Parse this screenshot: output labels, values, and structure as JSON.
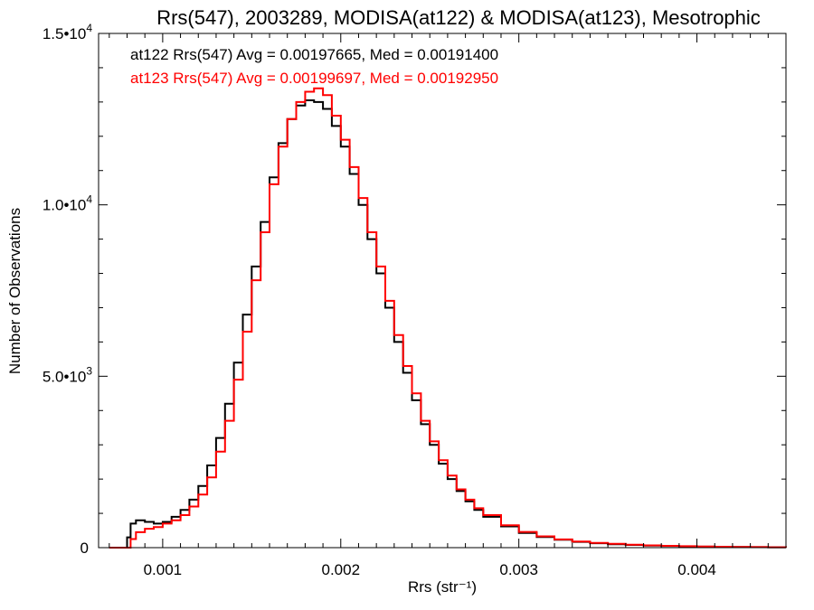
{
  "chart_data": {
    "type": "line",
    "title": "Rrs(547), 2003289, MODISA(at122) & MODISA(at123), Mesotrophic",
    "xlabel": "Rrs (str⁻¹)",
    "ylabel": "Number of Observations",
    "xlim": [
      0.00064,
      0.0045
    ],
    "ylim": [
      0,
      15000
    ],
    "xticks": [
      {
        "value": 0.001,
        "label": "0.001"
      },
      {
        "value": 0.002,
        "label": "0.002"
      },
      {
        "value": 0.003,
        "label": "0.003"
      },
      {
        "value": 0.004,
        "label": "0.004"
      }
    ],
    "yticks": [
      {
        "value": 0,
        "label": "0",
        "exp": ""
      },
      {
        "value": 5000,
        "label": "5.0•10",
        "exp": "3"
      },
      {
        "value": 10000,
        "label": "1.0•10",
        "exp": "4"
      },
      {
        "value": 15000,
        "label": "1.5•10",
        "exp": "4"
      }
    ],
    "grid": false,
    "legend_position": "top-left",
    "series": [
      {
        "label": "at122 Rrs(547) Avg = 0.00197665, Med = 0.00191400",
        "color": "#000000",
        "x": [
          0.0007,
          0.00078,
          0.0008,
          0.00082,
          0.00085,
          0.0009,
          0.00095,
          0.001,
          0.00105,
          0.0011,
          0.00115,
          0.0012,
          0.00125,
          0.0013,
          0.00135,
          0.0014,
          0.00145,
          0.0015,
          0.00155,
          0.0016,
          0.00165,
          0.0017,
          0.00175,
          0.0018,
          0.00185,
          0.0019,
          0.00195,
          0.002,
          0.00205,
          0.0021,
          0.00215,
          0.0022,
          0.00225,
          0.0023,
          0.00235,
          0.0024,
          0.00245,
          0.0025,
          0.00255,
          0.0026,
          0.00265,
          0.0027,
          0.00275,
          0.0028,
          0.0029,
          0.003,
          0.0031,
          0.0032,
          0.0033,
          0.0034,
          0.0035,
          0.0036,
          0.0037,
          0.0038,
          0.0039,
          0.004,
          0.0041,
          0.0042,
          0.0043,
          0.0044,
          0.0045
        ],
        "y": [
          0,
          0,
          300,
          700,
          800,
          750,
          700,
          750,
          900,
          1100,
          1400,
          1800,
          2400,
          3200,
          4200,
          5400,
          6800,
          8200,
          9500,
          10800,
          11800,
          12500,
          12900,
          13050,
          13000,
          12800,
          12300,
          11700,
          10900,
          10000,
          9000,
          8000,
          7000,
          6000,
          5100,
          4300,
          3600,
          3000,
          2450,
          2000,
          1650,
          1350,
          1100,
          900,
          620,
          430,
          310,
          230,
          170,
          130,
          100,
          80,
          60,
          50,
          40,
          30,
          25,
          20,
          15,
          10,
          5
        ]
      },
      {
        "label": "at123 Rrs(547) Avg = 0.00199697, Med = 0.00192950",
        "color": "#ff0000",
        "x": [
          0.0007,
          0.0008,
          0.00082,
          0.00085,
          0.0009,
          0.00095,
          0.001,
          0.00105,
          0.0011,
          0.00115,
          0.0012,
          0.00125,
          0.0013,
          0.00135,
          0.0014,
          0.00145,
          0.0015,
          0.00155,
          0.0016,
          0.00165,
          0.0017,
          0.00175,
          0.0018,
          0.00185,
          0.0019,
          0.00195,
          0.002,
          0.00205,
          0.0021,
          0.00215,
          0.0022,
          0.00225,
          0.0023,
          0.00235,
          0.0024,
          0.00245,
          0.0025,
          0.00255,
          0.0026,
          0.00265,
          0.0027,
          0.00275,
          0.0028,
          0.0029,
          0.003,
          0.0031,
          0.0032,
          0.0033,
          0.0034,
          0.0035,
          0.0036,
          0.0037,
          0.0038,
          0.0039,
          0.004,
          0.0041,
          0.0042,
          0.0043,
          0.0044,
          0.0045
        ],
        "y": [
          0,
          0,
          250,
          450,
          550,
          600,
          700,
          800,
          950,
          1200,
          1550,
          2050,
          2800,
          3700,
          4900,
          6300,
          7800,
          9200,
          10600,
          11700,
          12500,
          13000,
          13300,
          13400,
          13200,
          12600,
          11900,
          11100,
          10200,
          9200,
          8200,
          7200,
          6200,
          5300,
          4500,
          3700,
          3100,
          2550,
          2100,
          1700,
          1400,
          1150,
          950,
          650,
          460,
          330,
          240,
          180,
          140,
          110,
          85,
          65,
          52,
          42,
          33,
          26,
          20,
          15,
          10,
          5
        ]
      }
    ]
  }
}
